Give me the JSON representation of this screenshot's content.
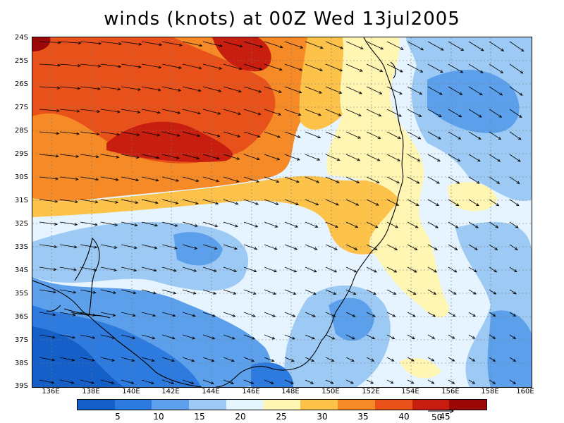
{
  "title": "winds (knots) at 00Z Wed 13jul2005",
  "y_labels": [
    "24S",
    "25S",
    "26S",
    "27S",
    "28S",
    "29S",
    "30S",
    "31S",
    "32S",
    "33S",
    "34S",
    "35S",
    "36S",
    "37S",
    "38S",
    "39S"
  ],
  "x_labels": [
    "136E",
    "138E",
    "140E",
    "142E",
    "144E",
    "146E",
    "148E",
    "150E",
    "152E",
    "154E",
    "156E",
    "158E",
    "160E"
  ],
  "colorbar": {
    "colors": [
      "#1560c8",
      "#2e7be0",
      "#5ca0ec",
      "#9ccaf4",
      "#e6f6ff",
      "#fff6b4",
      "#fcc24a",
      "#f58a26",
      "#e8521a",
      "#c81e10",
      "#9a0808"
    ],
    "labels": [
      "5",
      "10",
      "15",
      "20",
      "25",
      "30",
      "35",
      "40",
      "45"
    ]
  },
  "reference_vector": {
    "label": "50"
  },
  "map": {
    "background": "#e6f4ff",
    "coast_color": "#000000",
    "grid_color": "#777777"
  }
}
